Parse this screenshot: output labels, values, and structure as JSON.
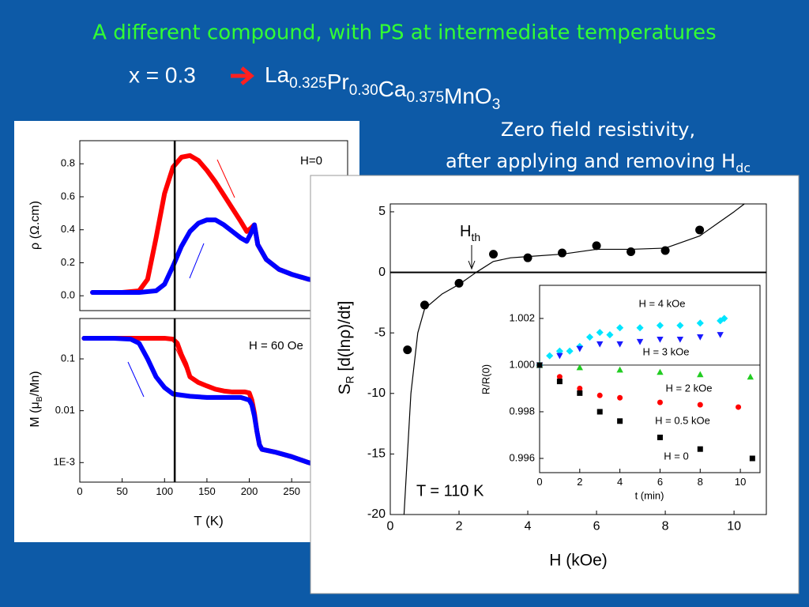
{
  "title": "A different compound, with PS at intermediate temperatures",
  "formula": {
    "lead": "x = 0.3",
    "parts": [
      {
        "text": "La",
        "sub": "0.325"
      },
      {
        "text": "Pr",
        "sub": "0.30"
      },
      {
        "text": "Ca",
        "sub": "0.375"
      },
      {
        "text": "MnO",
        "sub": "3"
      }
    ]
  },
  "caption": {
    "line1": "Zero field resistivity,",
    "line2": "after applying and removing H",
    "line2_sub": "dc"
  },
  "chart_data": [
    {
      "type": "line",
      "y_label": "ρ (Ω.cm)",
      "annotation": "H=0",
      "xlim": [
        0,
        316
      ],
      "ylim": [
        -0.09,
        0.94
      ],
      "yticks": [
        {
          "value": 0,
          "label": "0.0"
        },
        0.2,
        0.4,
        0.6,
        0.8
      ],
      "vline_x": 112,
      "series": [
        {
          "color": "#ff0000",
          "x": [
            15,
            30,
            50,
            70,
            80,
            90,
            100,
            110,
            120,
            130,
            140,
            150,
            160,
            170,
            180,
            190,
            197,
            202,
            206,
            210,
            220,
            235,
            250,
            270,
            290,
            300
          ],
          "values": [
            0.02,
            0.02,
            0.02,
            0.03,
            0.1,
            0.35,
            0.62,
            0.78,
            0.84,
            0.85,
            0.82,
            0.76,
            0.69,
            0.61,
            0.53,
            0.45,
            0.39,
            0.41,
            0.43,
            0.31,
            0.22,
            0.16,
            0.13,
            0.1,
            0.08,
            0.07
          ]
        },
        {
          "color": "#0000ff",
          "x": [
            15,
            30,
            50,
            70,
            90,
            100,
            110,
            120,
            130,
            140,
            150,
            160,
            170,
            180,
            190,
            197,
            202,
            206,
            210,
            220,
            235,
            250,
            270,
            290,
            300
          ],
          "values": [
            0.02,
            0.02,
            0.02,
            0.02,
            0.03,
            0.07,
            0.18,
            0.3,
            0.39,
            0.44,
            0.46,
            0.46,
            0.43,
            0.39,
            0.35,
            0.33,
            0.38,
            0.43,
            0.31,
            0.22,
            0.16,
            0.13,
            0.1,
            0.08,
            0.07
          ]
        }
      ]
    },
    {
      "type": "line",
      "y_label": {
        "text": "M (μ",
        "sub": "B",
        "after": "/Mn)"
      },
      "x_label": "T (K)",
      "annotation": "H = 60 Oe",
      "log_y": true,
      "xlim": [
        0,
        316
      ],
      "ylim": [
        0.00042,
        0.6
      ],
      "xticks": [
        0,
        50,
        100,
        150,
        200,
        250
      ],
      "yticks": [
        0.1,
        0.01,
        {
          "value": 0.001,
          "label": "1E-3"
        }
      ],
      "vline_x": 112,
      "series": [
        {
          "color": "#ff0000",
          "x": [
            5,
            20,
            40,
            60,
            80,
            100,
            110,
            115,
            120,
            125,
            130,
            140,
            150,
            160,
            170,
            180,
            190,
            195,
            200,
            203,
            206,
            209,
            212,
            215,
            230,
            250,
            270,
            290,
            300
          ],
          "values": [
            0.25,
            0.25,
            0.25,
            0.25,
            0.25,
            0.25,
            0.24,
            0.2,
            0.12,
            0.08,
            0.045,
            0.035,
            0.03,
            0.026,
            0.024,
            0.023,
            0.023,
            0.023,
            0.022,
            0.016,
            0.009,
            0.004,
            0.0022,
            0.0018,
            0.0016,
            0.0013,
            0.001,
            0.0008,
            0.0007
          ]
        },
        {
          "color": "#0000ff",
          "x": [
            5,
            20,
            40,
            60,
            70,
            80,
            90,
            100,
            110,
            130,
            150,
            170,
            190,
            195,
            200,
            203,
            206,
            209,
            212,
            215,
            230,
            250,
            270,
            290,
            300
          ],
          "values": [
            0.25,
            0.25,
            0.25,
            0.24,
            0.2,
            0.1,
            0.045,
            0.028,
            0.021,
            0.019,
            0.018,
            0.018,
            0.018,
            0.017,
            0.016,
            0.013,
            0.008,
            0.004,
            0.0022,
            0.0018,
            0.0016,
            0.0013,
            0.001,
            0.0008,
            0.0007
          ]
        }
      ]
    },
    {
      "type": "scatter",
      "x_label": "H (kOe)",
      "y_label": {
        "text": "S",
        "sub": "R",
        "after": " [d(lnρ)/dt]"
      },
      "annotation": "T = 110 K",
      "threshold_label": {
        "text": "H",
        "sub": "th"
      },
      "xlim": [
        0,
        10.94
      ],
      "ylim": [
        -20,
        5.65
      ],
      "xticks": [
        0,
        2,
        4,
        6,
        8,
        10
      ],
      "yticks": [
        5,
        0,
        -5,
        -10,
        -15,
        -20
      ],
      "zero_line": true,
      "series": [
        {
          "color": "#000000",
          "style": "markers",
          "marker": "circle",
          "x": [
            0.5,
            1,
            2,
            3,
            4,
            5,
            6,
            7,
            8,
            9
          ],
          "values": [
            -6.4,
            -2.7,
            -0.9,
            1.5,
            1.2,
            1.6,
            2.2,
            1.7,
            1.8,
            3.5
          ]
        },
        {
          "color": "#000000",
          "style": "line",
          "x": [
            0.4,
            0.6,
            0.8,
            1,
            1.5,
            2,
            2.5,
            3,
            3.5,
            4,
            5,
            6,
            7,
            8,
            9,
            9.5,
            10,
            10.3
          ],
          "values": [
            -20,
            -10,
            -5,
            -3,
            -1.8,
            -1,
            0,
            0.9,
            1.2,
            1.3,
            1.5,
            1.9,
            1.9,
            2,
            3,
            4,
            5,
            5.65
          ]
        }
      ]
    },
    {
      "type": "scatter",
      "x_label": "t (min)",
      "y_label": "R/R(0)",
      "xlim": [
        0,
        10.98
      ],
      "ylim": [
        0.99539,
        1.00342
      ],
      "xticks": [
        0,
        2,
        4,
        6,
        8,
        10
      ],
      "yticks": [
        1.002,
        {
          "value": 1,
          "label": "1.000"
        },
        0.998,
        0.996
      ],
      "ref_line": 1,
      "series": [
        {
          "name": "H = 4 kOe",
          "color": "#00e5ff",
          "style": "markers",
          "marker": "diamond",
          "x": [
            0,
            0.5,
            1,
            1.5,
            2,
            2.5,
            3,
            3.5,
            4,
            5,
            6,
            7,
            8,
            9,
            9.2
          ],
          "values": [
            1,
            1.0004,
            1.0006,
            1.0006,
            1.0008,
            1.0012,
            1.0014,
            1.0013,
            1.0016,
            1.0016,
            1.0017,
            1.0017,
            1.0018,
            1.0019,
            1.002
          ]
        },
        {
          "name": "H = 3 kOe",
          "color": "#1a1aff",
          "style": "markers",
          "marker": "triangle-down",
          "x": [
            0,
            1,
            2,
            3,
            4,
            5,
            6,
            7,
            8,
            9
          ],
          "values": [
            1,
            1.0004,
            1.0007,
            1.0009,
            1.0009,
            1.001,
            1.0011,
            1.0011,
            1.0012,
            1.0013
          ]
        },
        {
          "name": "H = 2 kOe",
          "color": "#22cc22",
          "style": "markers",
          "marker": "triangle-up",
          "x": [
            0,
            2,
            4,
            6,
            8,
            10.5
          ],
          "values": [
            1,
            0.9999,
            0.9998,
            0.9997,
            0.9996,
            0.9995
          ]
        },
        {
          "name": "H = 0.5 kOe",
          "color": "#ff0000",
          "style": "markers",
          "marker": "circle",
          "x": [
            0,
            1,
            2,
            3,
            4,
            6,
            8,
            9.9
          ],
          "values": [
            1,
            0.9995,
            0.999,
            0.9987,
            0.9986,
            0.9984,
            0.9983,
            0.9982
          ]
        },
        {
          "name": "H = 0",
          "color": "#000000",
          "style": "markers",
          "marker": "square",
          "x": [
            0,
            1,
            2,
            3,
            4,
            6,
            8,
            10.6
          ],
          "values": [
            1,
            0.9993,
            0.9988,
            0.998,
            0.9976,
            0.9969,
            0.9964,
            0.996
          ]
        }
      ]
    }
  ]
}
